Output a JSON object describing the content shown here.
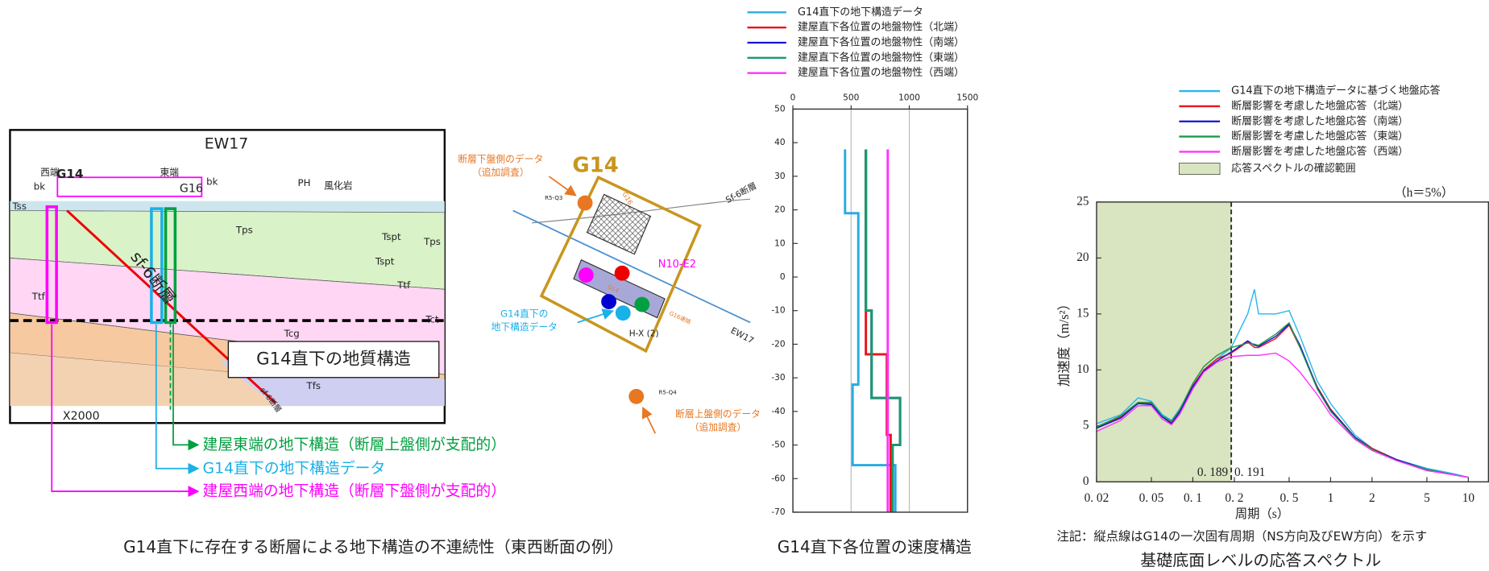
{
  "chart_data": [
    {
      "type": "line",
      "title": "G14直下各位置の速度構造",
      "xlim": [
        0,
        1500
      ],
      "xticks": [
        0,
        500,
        1000,
        1500
      ],
      "ylim": [
        -70,
        50
      ],
      "yticks": [
        50,
        40,
        30,
        20,
        10,
        0,
        -10,
        -20,
        -30,
        -40,
        -50,
        -60,
        -70
      ],
      "grid": true,
      "series": [
        {
          "name": "G14直下の地下構造データ",
          "color": "#29abe2",
          "x": [
            448,
            448,
            562,
            562,
            513,
            513,
            880,
            880
          ],
          "values": [
            38,
            19,
            19,
            -32,
            -32,
            -56,
            -56,
            -70
          ]
        },
        {
          "name": "建屋直下各位置の地盤物性（北端）",
          "color": "#e8141c",
          "x": [
            627,
            627,
            807,
            807,
            840,
            840
          ],
          "values": [
            38,
            -23,
            -23,
            -47,
            -47,
            -70
          ]
        },
        {
          "name": "建屋直下各位置の地盤物性（南端）",
          "color": "#1414d0",
          "x": [
            627,
            627,
            676,
            676,
            921,
            921,
            856,
            856
          ],
          "values": [
            38,
            -10,
            -10,
            -36,
            -36,
            -50,
            -50,
            -70
          ]
        },
        {
          "name": "建屋直下各位置の地盤物性（東端）",
          "color": "#1a9a6a",
          "x": [
            627,
            627,
            676,
            676,
            921,
            921,
            856,
            856
          ],
          "values": [
            38,
            -10,
            -10,
            -36,
            -36,
            -50,
            -50,
            -70
          ]
        },
        {
          "name": "建屋直下各位置の地盤物性（西端）",
          "color": "#ff33ff",
          "x": [
            815,
            815
          ],
          "values": [
            38,
            -70
          ]
        }
      ]
    },
    {
      "type": "line",
      "title": "基礎底面レベルの応答スペクトル",
      "xlabel": "周期（s）",
      "ylabel": "加速度（m/s²）",
      "annotation": "（h＝5%）",
      "note": "注記：縦点線はG14の一次固有周期（NS方向及びEW方向）を示す",
      "xscale": "log",
      "xlim": [
        0.02,
        14
      ],
      "xticks": [
        {
          "value": 0.02,
          "label": "0. 02"
        },
        {
          "value": 0.05,
          "label": "0. 05"
        },
        {
          "value": 0.1,
          "label": "0. 1"
        },
        {
          "value": 0.2,
          "label": "0. 2"
        },
        {
          "value": 0.5,
          "label": "0. 5"
        },
        1,
        2,
        5,
        10
      ],
      "ylim": [
        0,
        25
      ],
      "yticks": [
        0,
        5,
        10,
        15,
        20,
        25
      ],
      "grid": false,
      "band": {
        "name": "応答スペクトルの確認範囲",
        "color": "#d9e4c0",
        "range": [
          0.02,
          0.19
        ]
      },
      "period_lines": [
        {
          "value": 0.189,
          "label": "0. 189"
        },
        {
          "value": 0.191,
          "label": "0. 191"
        }
      ],
      "x": [
        0.02,
        0.03,
        0.04,
        0.05,
        0.06,
        0.07,
        0.08,
        0.1,
        0.12,
        0.15,
        0.19,
        0.25,
        0.28,
        0.3,
        0.4,
        0.5,
        0.6,
        0.8,
        1,
        1.5,
        2,
        3,
        5,
        8,
        10
      ],
      "series": [
        {
          "name": "G14直下の地下構造データに基づく地盤応答",
          "color": "#29b6f0",
          "values": [
            5.2,
            6.0,
            7.5,
            7.2,
            6.0,
            5.5,
            6.5,
            8.5,
            10.0,
            11.0,
            12.0,
            15.0,
            17.2,
            15.0,
            15.0,
            15.3,
            13.0,
            9.0,
            7.0,
            4.2,
            3.0,
            2.0,
            1.2,
            0.7,
            0.4
          ]
        },
        {
          "name": "断層影響を考慮した地盤応答（北端）",
          "color": "#e8141c",
          "values": [
            4.8,
            5.8,
            7.0,
            7.0,
            5.8,
            5.3,
            6.3,
            8.6,
            10.0,
            11.0,
            11.5,
            12.5,
            12.0,
            12.0,
            12.8,
            14.0,
            12.0,
            8.5,
            6.5,
            4.0,
            3.0,
            2.0,
            1.1,
            0.6,
            0.4
          ]
        },
        {
          "name": "断層影響を考慮した地盤応答（南端）",
          "color": "#1414d0",
          "values": [
            4.8,
            5.7,
            7.0,
            6.9,
            5.8,
            5.2,
            6.2,
            8.5,
            9.9,
            10.8,
            11.6,
            12.6,
            12.2,
            12.1,
            13.0,
            14.1,
            12.2,
            8.4,
            6.4,
            4.0,
            2.9,
            2.0,
            1.1,
            0.6,
            0.4
          ]
        },
        {
          "name": "断層影響を考慮した地盤応答（東端）",
          "color": "#1a9a4a",
          "values": [
            4.9,
            5.9,
            7.1,
            7.1,
            5.9,
            5.4,
            6.4,
            8.8,
            10.3,
            11.3,
            12.0,
            12.4,
            12.3,
            12.2,
            13.2,
            14.2,
            12.0,
            8.3,
            6.3,
            3.9,
            2.9,
            1.9,
            1.1,
            0.6,
            0.4
          ]
        },
        {
          "name": "断層影響を考慮した地盤応答（西端）",
          "color": "#ff33ff",
          "values": [
            4.5,
            5.5,
            6.8,
            6.8,
            5.6,
            5.1,
            6.0,
            8.3,
            9.8,
            10.7,
            11.2,
            11.3,
            11.3,
            11.3,
            11.5,
            10.8,
            9.8,
            7.8,
            6.0,
            3.8,
            2.8,
            1.9,
            1.0,
            0.6,
            0.4
          ]
        }
      ]
    }
  ],
  "section": {
    "title": "EW17",
    "labels": [
      "西端",
      "G14",
      "東端",
      "G16",
      "bk",
      "bk",
      "PH",
      "風化岩",
      "Tss",
      "Tps",
      "Tspt",
      "Tps",
      "Tspt",
      "Ttf",
      "Ttf",
      "Tct",
      "Tcg",
      "Tfs",
      "sf-6断層",
      "sf-6断層",
      "X2000"
    ],
    "box": "G14直下の地質構造",
    "callouts": [
      "建屋東端の地下構造（断層上盤側が支配的）",
      "G14直下の地下構造データ",
      "建屋西端の地下構造（断層下盤側が支配的）"
    ],
    "caption": "G14直下に存在する断層による地下構造の不連続性（東西断面の例）"
  },
  "plan": {
    "title": "G14",
    "labels": [
      "断層下盤側のデータ",
      "（追加調査）",
      "R5-Q3",
      "G16",
      "Sf-6断層",
      "N10-E2",
      "G14直下の",
      "地下構造データ",
      "H-X (2)",
      "EW17",
      "R5-Q4",
      "断層上盤側のデータ",
      "（追加調査）",
      "G14",
      "G16連絡"
    ]
  }
}
